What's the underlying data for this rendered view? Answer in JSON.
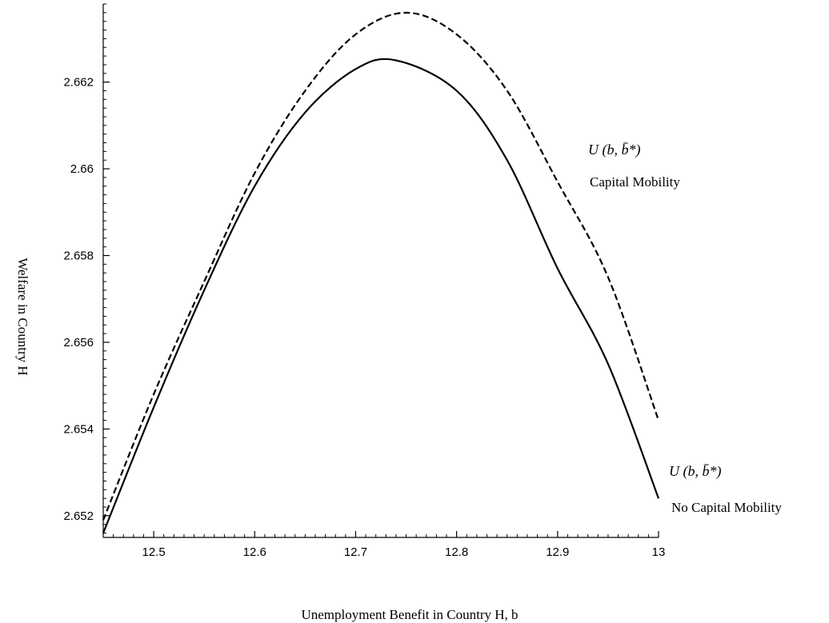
{
  "chart_data": {
    "type": "line",
    "title": "",
    "xlabel": "Unemployment Benefit in Country H, b",
    "ylabel": "Welfare  in Country H",
    "xlim": [
      12.45,
      13.0
    ],
    "ylim": [
      2.6515,
      2.6638
    ],
    "xticks": [
      12.5,
      12.6,
      12.7,
      12.8,
      12.9,
      13
    ],
    "xtick_labels": [
      "12.5",
      "12.6",
      "12.7",
      "12.8",
      "12.9",
      "13"
    ],
    "yticks": [
      2.652,
      2.654,
      2.656,
      2.658,
      2.66,
      2.662
    ],
    "ytick_labels": [
      "2.652",
      "2.654",
      "2.656",
      "2.658",
      "2.66",
      "2.662"
    ],
    "grid": false,
    "series": [
      {
        "name": "Capital Mobility",
        "style": "dashed",
        "color": "#000000",
        "x": [
          12.45,
          12.5,
          12.55,
          12.6,
          12.65,
          12.7,
          12.75,
          12.8,
          12.85,
          12.9,
          12.95,
          13.0
        ],
        "y": [
          2.6519,
          2.6548,
          2.6574,
          2.6599,
          2.6618,
          2.6631,
          2.6636,
          2.6631,
          2.6618,
          2.6597,
          2.6575,
          2.6542
        ]
      },
      {
        "name": "No Capital Mobility",
        "style": "solid",
        "color": "#000000",
        "x": [
          12.45,
          12.5,
          12.55,
          12.6,
          12.65,
          12.7,
          12.74,
          12.8,
          12.85,
          12.9,
          12.95,
          13.0
        ],
        "y": [
          2.6516,
          2.6545,
          2.6572,
          2.6596,
          2.6613,
          2.6623,
          2.6625,
          2.6618,
          2.6602,
          2.6577,
          2.6555,
          2.6524
        ]
      }
    ],
    "annotations": [
      {
        "math_label": "U (b, b̄*)",
        "text": "Capital Mobility"
      },
      {
        "math_label": "U (b, b̄*)",
        "text": "No Capital Mobility"
      }
    ]
  }
}
